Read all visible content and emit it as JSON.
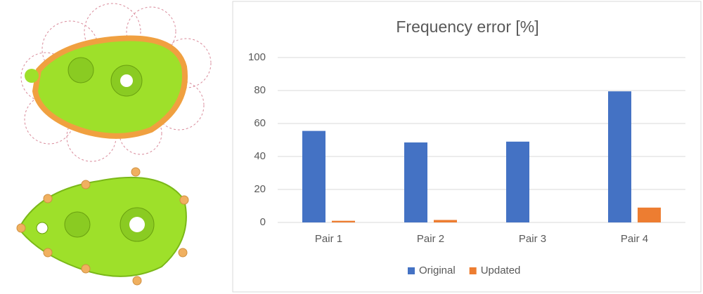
{
  "chart_data": {
    "type": "bar",
    "title": "Frequency error [%]",
    "categories": [
      "Pair 1",
      "Pair 2",
      "Pair 3",
      "Pair 4"
    ],
    "series": [
      {
        "name": "Original",
        "color": "#4472c4",
        "values": [
          55.5,
          48.5,
          49,
          79.5
        ]
      },
      {
        "name": "Updated",
        "color": "#ed7d31",
        "values": [
          1,
          1.5,
          0,
          9
        ]
      }
    ],
    "ylim": [
      0,
      100
    ],
    "yticks": [
      0,
      20,
      40,
      60,
      80,
      100
    ],
    "grid": true,
    "legend": "bottom"
  }
}
